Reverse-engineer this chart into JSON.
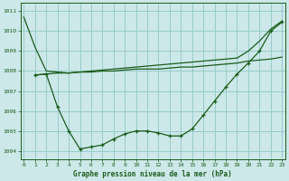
{
  "line1_x": [
    0,
    1,
    2,
    3,
    4,
    5,
    6,
    7,
    8,
    9,
    10,
    11,
    12,
    13,
    14,
    15,
    16,
    17,
    18,
    19,
    20,
    21,
    22,
    23
  ],
  "line1_y": [
    1010.7,
    1009.2,
    1008.0,
    1007.95,
    1007.9,
    1007.95,
    1008.0,
    1008.05,
    1008.1,
    1008.15,
    1008.2,
    1008.25,
    1008.3,
    1008.35,
    1008.4,
    1008.45,
    1008.5,
    1008.55,
    1008.6,
    1008.65,
    1009.0,
    1009.5,
    1010.1,
    1010.5
  ],
  "line2_x": [
    1,
    2,
    3,
    4,
    5,
    6,
    7,
    8,
    9,
    10,
    11,
    12,
    13,
    14,
    15,
    16,
    17,
    18,
    19,
    20,
    21,
    22,
    23
  ],
  "line2_y": [
    1007.8,
    1007.85,
    1007.9,
    1007.9,
    1007.95,
    1007.95,
    1008.0,
    1008.0,
    1008.05,
    1008.1,
    1008.1,
    1008.1,
    1008.15,
    1008.2,
    1008.2,
    1008.25,
    1008.3,
    1008.35,
    1008.4,
    1008.5,
    1008.55,
    1008.6,
    1008.7
  ],
  "line3_x": [
    1,
    2,
    3,
    4,
    5,
    6,
    7,
    8,
    9,
    10,
    11,
    12,
    13,
    14,
    15,
    16,
    17,
    18,
    19,
    20,
    21,
    22,
    23
  ],
  "line3_y": [
    1007.8,
    1007.85,
    1006.2,
    1005.0,
    1004.1,
    1004.2,
    1004.3,
    1004.6,
    1004.85,
    1005.0,
    1005.0,
    1004.9,
    1004.75,
    1004.75,
    1005.1,
    1005.8,
    1006.5,
    1007.2,
    1007.85,
    1008.4,
    1009.0,
    1010.0,
    1010.45
  ],
  "bg_color": "#cce8e8",
  "grid_color": "#99cccc",
  "line_color": "#1a5c1a",
  "title": "Graphe pression niveau de la mer (hPa)",
  "xlim": [
    -0.3,
    23.3
  ],
  "ylim": [
    1003.6,
    1011.4
  ],
  "yticks": [
    1004,
    1005,
    1006,
    1007,
    1008,
    1009,
    1010,
    1011
  ],
  "xticks": [
    0,
    1,
    2,
    3,
    4,
    5,
    6,
    7,
    8,
    9,
    10,
    11,
    12,
    13,
    14,
    15,
    16,
    17,
    18,
    19,
    20,
    21,
    22,
    23
  ]
}
